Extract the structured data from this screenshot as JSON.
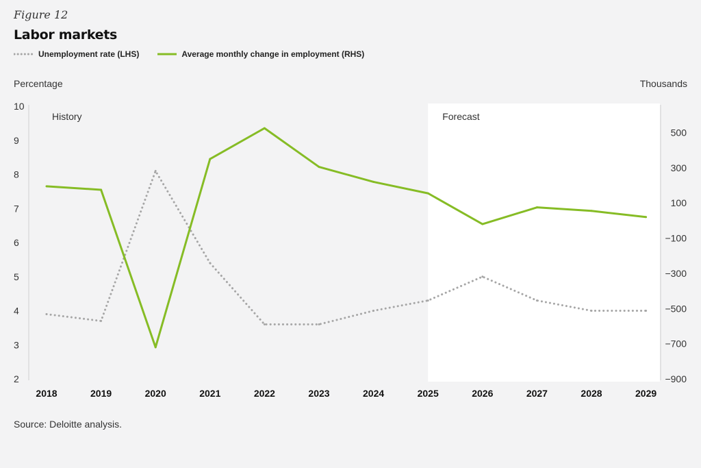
{
  "figure_label": "Figure 12",
  "colors": {
    "background": "#f3f3f4",
    "forecast_region": "#ffffff",
    "employment_line": "#86bc25",
    "unemployment_line": "#a6a6a6",
    "axis_line": "#cfcfcf"
  },
  "source": "Source: Deloitte analysis.",
  "chart_data": {
    "type": "line",
    "title": "Labor markets",
    "x": [
      "2018",
      "2019",
      "2020",
      "2021",
      "2022",
      "2023",
      "2024",
      "2025",
      "2026",
      "2027",
      "2028",
      "2029"
    ],
    "series": [
      {
        "name": "Unemployment rate (LHS)",
        "axis": "left",
        "style": "dotted",
        "values": [
          3.9,
          3.7,
          8.1,
          5.4,
          3.6,
          3.6,
          4.0,
          4.3,
          5.0,
          4.3,
          4.0,
          4.0
        ]
      },
      {
        "name": "Average monthly change in employment (RHS)",
        "axis": "right",
        "style": "solid",
        "values": [
          195,
          175,
          -720,
          350,
          525,
          305,
          220,
          155,
          -20,
          75,
          55,
          20
        ]
      }
    ],
    "left_axis": {
      "label": "Percentage",
      "ylim": [
        2,
        10
      ],
      "ticks": [
        "2",
        "3",
        "4",
        "5",
        "6",
        "7",
        "8",
        "9",
        "10"
      ]
    },
    "right_axis": {
      "label": "Thousands",
      "ylim": [
        -900,
        650
      ],
      "tick_values": [
        500,
        300,
        100,
        -100,
        -300,
        -500,
        -700,
        -900
      ],
      "ticks": [
        "500",
        "300",
        "100",
        "−100",
        "−300",
        "−500",
        "−700",
        "−900"
      ]
    },
    "regions": [
      {
        "label": "History",
        "from": "2018",
        "to": "2025"
      },
      {
        "label": "Forecast",
        "from": "2025",
        "to": "2029"
      }
    ],
    "grid": false,
    "legend": "top-left"
  }
}
